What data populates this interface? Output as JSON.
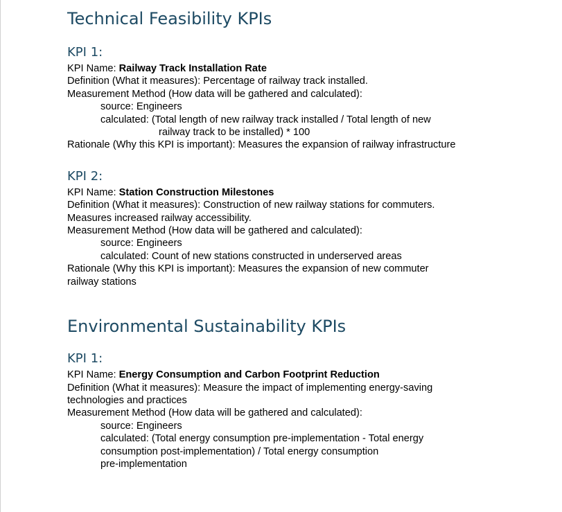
{
  "sections": {
    "technical": {
      "title": "Technical Feasibility KPIs",
      "kpi1": {
        "heading": "KPI 1:",
        "name_label": "KPI Name: ",
        "name_value": "Railway Track Installation Rate",
        "definition": "Definition (What it measures): Percentage of railway track installed.",
        "method": "Measurement Method (How data will be gathered and calculated):",
        "source": "source: Engineers",
        "calc_line1": "calculated:  (Total length of new railway track installed / Total length of new",
        "calc_line2": "railway track to be installed) * 100",
        "rationale": "Rationale (Why this KPI is important): Measures the expansion of railway infrastructure"
      },
      "kpi2": {
        "heading": "KPI 2:",
        "name_label": "KPI Name: ",
        "name_value": "Station Construction Milestones",
        "definition_line1": "Definition (What it measures): Construction of new railway stations for commuters.",
        "definition_line2": "Measures increased railway accessibility.",
        "method": "Measurement Method (How data will be gathered and calculated):",
        "source": "source:  Engineers",
        "calc": "calculated: Count of new stations constructed in underserved areas",
        "rationale_line1": "Rationale (Why this KPI is important): Measures the expansion of new commuter",
        "rationale_line2": "railway stations"
      }
    },
    "environmental": {
      "title": "Environmental Sustainability KPIs",
      "kpi1": {
        "heading": "KPI 1:",
        "name_label": "KPI Name: ",
        "name_value": "Energy Consumption and Carbon Footprint Reduction",
        "definition_line1": "Definition (What it measures): Measure the impact of implementing energy-saving",
        "definition_line2": "technologies and practices",
        "method": "Measurement Method (How data will be gathered and calculated):",
        "source": "source:  Engineers",
        "calc_line1": "calculated:  (Total energy consumption pre-implementation - Total energy",
        "calc_line2": "consumption post-implementation) / Total energy consumption",
        "calc_line3": "pre-implementation"
      }
    }
  }
}
